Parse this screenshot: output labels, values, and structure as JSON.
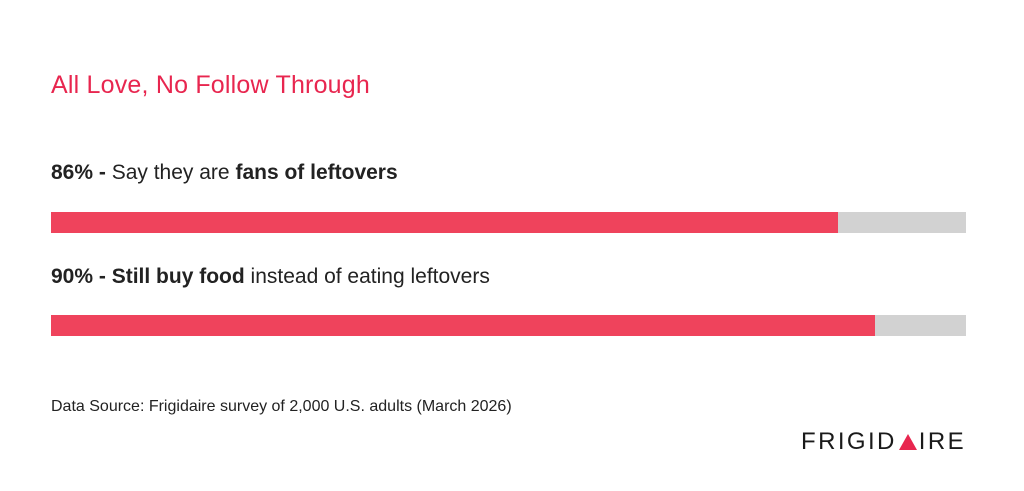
{
  "title": "All Love, No Follow Through",
  "rows": [
    {
      "percent_label": "86% -",
      "text_plain_1": "Say they are",
      "text_bold": "fans of leftovers",
      "text_plain_2": ""
    },
    {
      "percent_label": "90% -",
      "text_plain_1": "",
      "text_bold": "Still buy food",
      "text_plain_2": "instead of eating leftovers"
    }
  ],
  "source": "Data Source: Frigidaire survey of 2,000 U.S. adults (March 2026)",
  "logo": {
    "part_1": "FRIGID",
    "part_2": "IRE",
    "triangle_icon": "triangle-a-icon"
  },
  "colors": {
    "title": "#e8264f",
    "bar_fill": "#ef435c",
    "bar_track": "#d2d2d2"
  },
  "chart_data": {
    "type": "bar",
    "orientation": "horizontal",
    "categories": [
      "Say they are fans of leftovers",
      "Still buy food instead of eating leftovers"
    ],
    "values": [
      86,
      90
    ],
    "ylim": [
      0,
      100
    ],
    "unit": "%",
    "title": "All Love, No Follow Through",
    "grid": false
  }
}
